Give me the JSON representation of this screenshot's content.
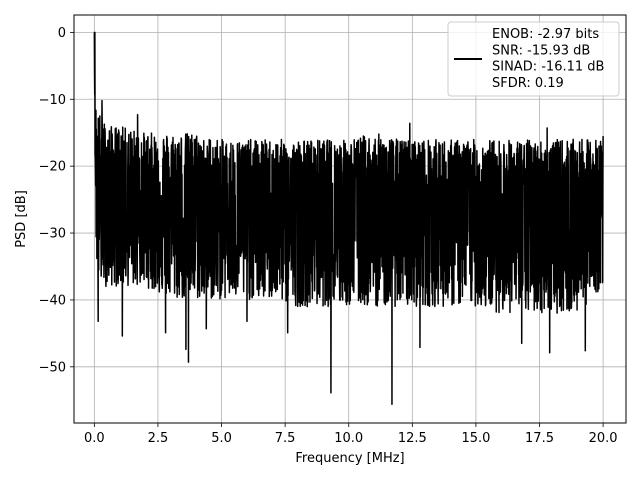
{
  "chart_data": {
    "type": "line",
    "title": "",
    "xlabel": "Frequency [MHz]",
    "ylabel": "PSD [dB]",
    "xlim": [
      -0.8,
      20.9
    ],
    "ylim": [
      -58.4,
      2.6
    ],
    "xticks": [
      0.0,
      2.5,
      5.0,
      7.5,
      10.0,
      12.5,
      15.0,
      17.5,
      20.0
    ],
    "xtick_labels": [
      "0.0",
      "2.5",
      "5.0",
      "7.5",
      "10.0",
      "12.5",
      "15.0",
      "17.5",
      "20.0"
    ],
    "yticks": [
      0,
      -10,
      -20,
      -30,
      -40,
      -50
    ],
    "ytick_labels": [
      "0",
      "−10",
      "−20",
      "−30",
      "−40",
      "−50"
    ],
    "grid": true,
    "legend_position": "top-right",
    "series": [
      {
        "color": "#000000",
        "envelope": {
          "x": [
            0.0,
            0.05,
            0.1,
            0.2,
            0.5,
            1,
            2,
            3,
            4,
            5,
            6,
            7,
            8,
            9,
            10,
            11,
            12,
            13,
            14,
            15,
            16,
            17,
            18,
            19,
            20.0
          ],
          "upper": [
            0,
            -10,
            -12,
            -12,
            -14,
            -14,
            -15,
            -15,
            -15,
            -16,
            -16,
            -16,
            -16,
            -16,
            -16,
            -15,
            -16,
            -16,
            -16,
            -16,
            -16,
            -16,
            -16,
            -16,
            -16
          ],
          "lower": [
            -2,
            -30,
            -35,
            -38,
            -38,
            -38,
            -38,
            -40,
            -40,
            -40,
            -40,
            -40,
            -41,
            -41,
            -41,
            -41,
            -41,
            -41,
            -41,
            -41,
            -42,
            -42,
            -42,
            -42,
            -38
          ]
        },
        "notable_minima": [
          {
            "x": 0.15,
            "y": -43.2
          },
          {
            "x": 1.1,
            "y": -45.4
          },
          {
            "x": 2.8,
            "y": -44.9
          },
          {
            "x": 3.6,
            "y": -47.4
          },
          {
            "x": 3.7,
            "y": -49.3
          },
          {
            "x": 4.4,
            "y": -44.3
          },
          {
            "x": 6.0,
            "y": -43.2
          },
          {
            "x": 7.6,
            "y": -44.9
          },
          {
            "x": 9.3,
            "y": -53.9
          },
          {
            "x": 11.7,
            "y": -55.6
          },
          {
            "x": 12.8,
            "y": -47.1
          },
          {
            "x": 16.8,
            "y": -46.5
          },
          {
            "x": 17.9,
            "y": -47.9
          },
          {
            "x": 19.3,
            "y": -47.6
          }
        ],
        "notable_maxima": [
          {
            "x": 0.02,
            "y": 0.0
          },
          {
            "x": 0.3,
            "y": -10.2
          },
          {
            "x": 1.7,
            "y": -12.3
          },
          {
            "x": 12.4,
            "y": -13.6
          },
          {
            "x": 17.8,
            "y": -14.3
          },
          {
            "x": 20.0,
            "y": -15.5
          }
        ]
      }
    ],
    "legend": {
      "lines": [
        "ENOB: -2.97 bits",
        "SNR: -15.93 dB",
        "SINAD: -16.11 dB",
        "SFDR: 0.19"
      ]
    }
  }
}
